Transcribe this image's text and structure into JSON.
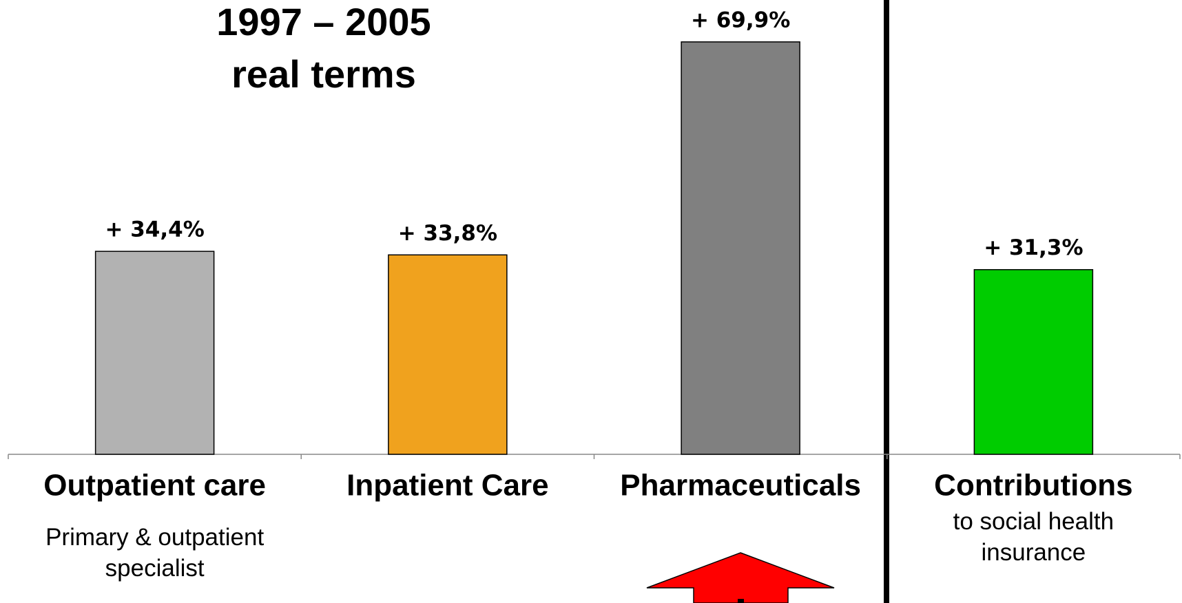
{
  "chart_data": {
    "type": "bar",
    "title": "1997 – 2005",
    "subtitle": "real terms",
    "categories": [
      "Outpatient care",
      "Inpatient Care",
      "Pharmaceuticals",
      "Contributions"
    ],
    "category_notes": [
      "Primary & outpatient specialist",
      null,
      null,
      "to social health insurance"
    ],
    "values": [
      34.4,
      33.8,
      69.9,
      31.3
    ],
    "value_labels": [
      "+ 34,4%",
      "+ 33,8%",
      "+ 69,9%",
      "+ 31,3%"
    ],
    "colors": [
      "#b2b2b2",
      "#f0a21e",
      "#808080",
      "#00cc00"
    ],
    "ylim": [
      0,
      70
    ]
  }
}
